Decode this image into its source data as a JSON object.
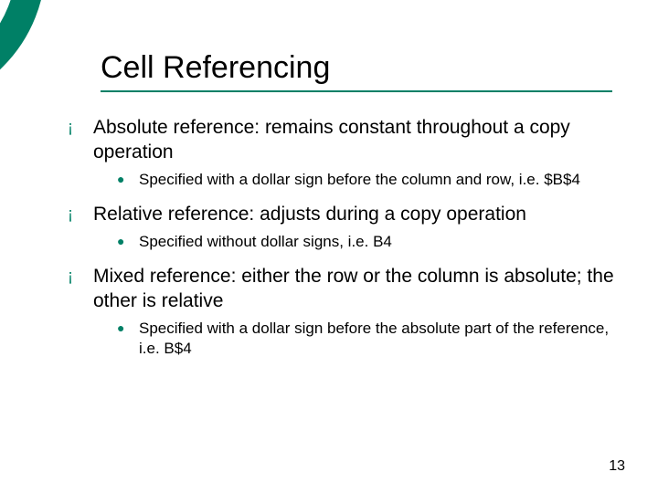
{
  "accent_color": "#008066",
  "background_color": "#ffffff",
  "text_color": "#000000",
  "title": "Cell Referencing",
  "title_fontsize": 34,
  "body_fontsize": 21,
  "sub_fontsize": 17,
  "bullets": [
    {
      "text": "Absolute reference:  remains constant throughout a copy operation",
      "sub": [
        "Specified with a dollar sign before the column and row, i.e. $B$4"
      ]
    },
    {
      "text": "Relative reference: adjusts during a copy operation",
      "sub": [
        "Specified without dollar signs, i.e. B4"
      ]
    },
    {
      "text": "Mixed reference:  either the row or the column is absolute; the other is relative",
      "sub": [
        "Specified with a dollar sign before the absolute part of the reference, i.e. B$4"
      ]
    }
  ],
  "page_number": "13",
  "l1_marker": "¡",
  "l2_marker": "●"
}
